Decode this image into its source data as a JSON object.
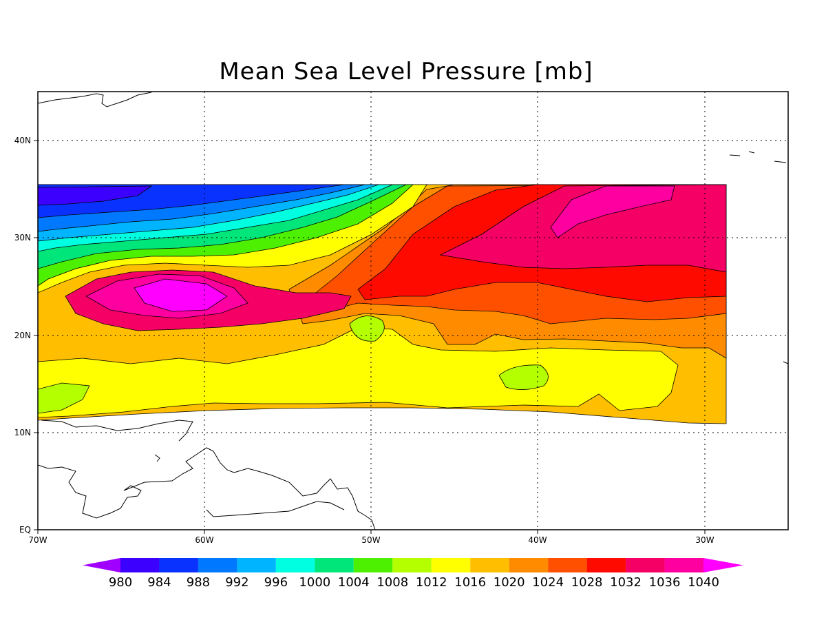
{
  "title": "Mean Sea Level Pressure [mb]",
  "map": {
    "lon_range": [
      -70,
      -25
    ],
    "lat_range": [
      0,
      45
    ],
    "x_ticks": [
      {
        "lon": -70,
        "label": "70W"
      },
      {
        "lon": -60,
        "label": "60W"
      },
      {
        "lon": -50,
        "label": "50W"
      },
      {
        "lon": -40,
        "label": "40W"
      },
      {
        "lon": -30,
        "label": "30W"
      }
    ],
    "y_ticks": [
      {
        "lat": 0,
        "label": "EQ"
      },
      {
        "lat": 10,
        "label": "10N"
      },
      {
        "lat": 20,
        "label": "20N"
      },
      {
        "lat": 30,
        "label": "30N"
      },
      {
        "lat": 40,
        "label": "40N"
      }
    ],
    "grid": "dotted",
    "data_extent": {
      "lon": [
        -70,
        -29
      ],
      "lat": [
        11,
        35.5
      ]
    }
  },
  "colorbar": {
    "levels": [
      980,
      984,
      988,
      992,
      996,
      1000,
      1004,
      1008,
      1012,
      1016,
      1020,
      1024,
      1028,
      1032,
      1036,
      1040
    ],
    "colors": [
      "#a000ff",
      "#3c00ff",
      "#0a32ff",
      "#0078ff",
      "#00b4ff",
      "#00ffe0",
      "#00e67a",
      "#4cf000",
      "#b4ff00",
      "#ffff00",
      "#ffbe00",
      "#ff8c00",
      "#ff5000",
      "#ff0a00",
      "#f50064",
      "#ff00a0",
      "#ff00ff"
    ]
  },
  "field": {
    "regions": [
      {
        "level_index": 9,
        "name": "ridge-1016-south"
      },
      {
        "level_index": 8,
        "name": "band-1012-south"
      },
      {
        "level_index": 10,
        "name": "band-1020"
      },
      {
        "level_index": 11,
        "name": "band-1024"
      },
      {
        "level_index": 12,
        "name": "band-1028"
      },
      {
        "level_index": 13,
        "name": "high-1032-east"
      },
      {
        "level_index": 14,
        "name": "high-1036-east"
      },
      {
        "level_index": 7,
        "name": "low-1008-southwest"
      },
      {
        "level_index": 7,
        "name": "cell-1008-center"
      },
      {
        "level_index": 7,
        "name": "cell-1008-east"
      },
      {
        "level_index": 13,
        "name": "high-1032-west"
      },
      {
        "level_index": 14,
        "name": "high-1036-west"
      },
      {
        "level_index": 15,
        "name": "high-1040-west"
      },
      {
        "level_index": 8,
        "name": "band-1012-north"
      },
      {
        "level_index": 6,
        "name": "band-1004-north"
      },
      {
        "level_index": 5,
        "name": "band-1000-north"
      },
      {
        "level_index": 4,
        "name": "band-996-north"
      },
      {
        "level_index": 3,
        "name": "band-992-north"
      },
      {
        "level_index": 2,
        "name": "band-988-north"
      },
      {
        "level_index": 1,
        "name": "low-984-north"
      },
      {
        "level_index": 0,
        "name": "low-980-north"
      }
    ]
  }
}
